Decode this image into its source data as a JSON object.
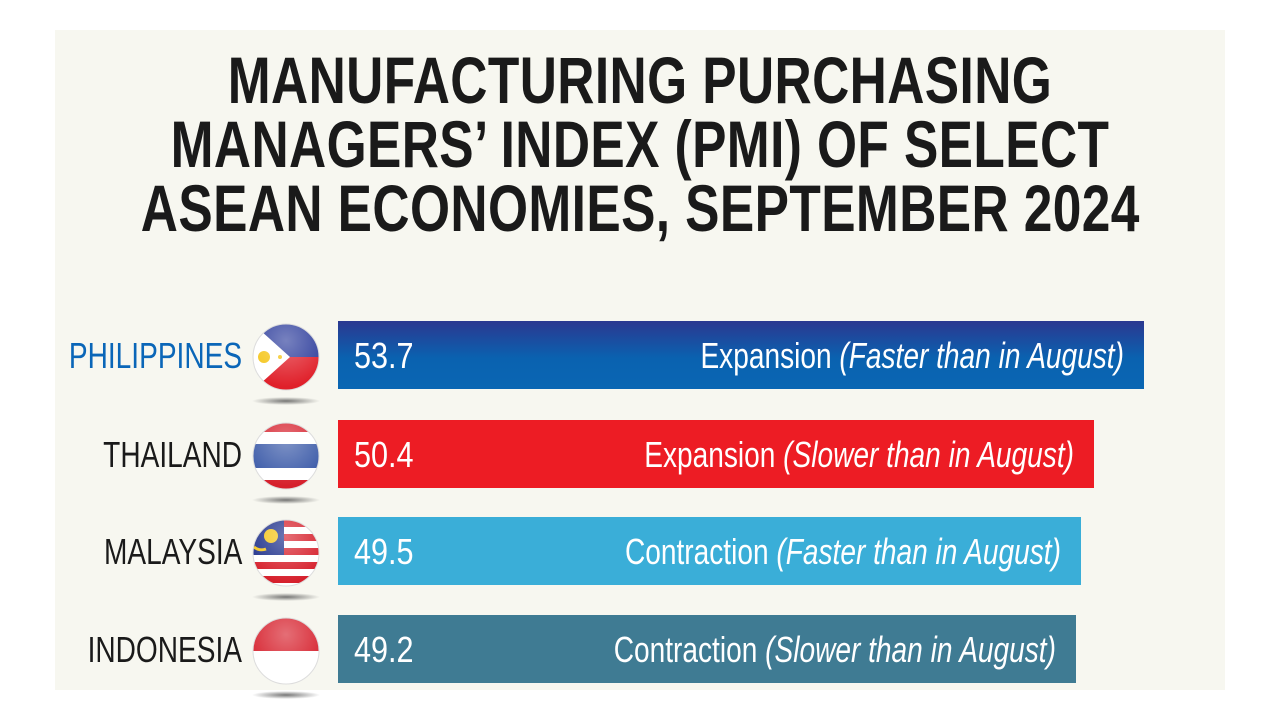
{
  "chart_data": {
    "type": "bar",
    "orientation": "horizontal",
    "title": [
      "MANUFACTURING PURCHASING",
      "MANAGERS’ INDEX (PMI) OF SELECT",
      "ASEAN ECONOMIES, SEPTEMBER 2024"
    ],
    "categories": [
      "PHILIPPINES",
      "THAILAND",
      "MALAYSIA",
      "INDONESIA"
    ],
    "values": [
      53.7,
      50.4,
      49.5,
      49.2
    ],
    "value_labels": [
      "53.7",
      "50.4",
      "49.5",
      "49.2"
    ],
    "status": [
      "Expansion",
      "Expansion",
      "Contraction",
      "Contraction"
    ],
    "notes": [
      "(Faster than in August)",
      "(Slower than in August)",
      "(Faster than in August)",
      "(Slower than in August)"
    ],
    "colors": [
      "#0a5fae",
      "#ed1c24",
      "#3aaed8",
      "#3f7b93"
    ],
    "label_colors": [
      "#0a66b8",
      "#1a1a1a",
      "#1a1a1a",
      "#1a1a1a"
    ],
    "xlim": [
      0,
      60
    ],
    "grid": false,
    "legend": "none"
  }
}
